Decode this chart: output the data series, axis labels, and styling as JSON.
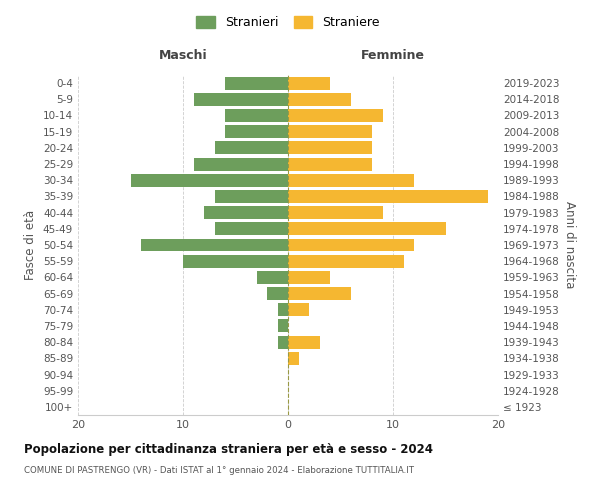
{
  "age_groups": [
    "100+",
    "95-99",
    "90-94",
    "85-89",
    "80-84",
    "75-79",
    "70-74",
    "65-69",
    "60-64",
    "55-59",
    "50-54",
    "45-49",
    "40-44",
    "35-39",
    "30-34",
    "25-29",
    "20-24",
    "15-19",
    "10-14",
    "5-9",
    "0-4"
  ],
  "birth_years": [
    "≤ 1923",
    "1924-1928",
    "1929-1933",
    "1934-1938",
    "1939-1943",
    "1944-1948",
    "1949-1953",
    "1954-1958",
    "1959-1963",
    "1964-1968",
    "1969-1973",
    "1974-1978",
    "1979-1983",
    "1984-1988",
    "1989-1993",
    "1994-1998",
    "1999-2003",
    "2004-2008",
    "2009-2013",
    "2014-2018",
    "2019-2023"
  ],
  "maschi": [
    0,
    0,
    0,
    0,
    1,
    1,
    1,
    2,
    3,
    10,
    14,
    7,
    8,
    7,
    15,
    9,
    7,
    6,
    6,
    9,
    6
  ],
  "femmine": [
    0,
    0,
    0,
    1,
    3,
    0,
    2,
    6,
    4,
    11,
    12,
    15,
    9,
    19,
    12,
    8,
    8,
    8,
    9,
    6,
    4
  ],
  "color_maschi": "#6d9e5c",
  "color_femmine": "#f5b731",
  "title": "Popolazione per cittadinanza straniera per età e sesso - 2024",
  "subtitle": "COMUNE DI PASTRENGO (VR) - Dati ISTAT al 1° gennaio 2024 - Elaborazione TUTTITALIA.IT",
  "ylabel_left": "Fasce di età",
  "ylabel_right": "Anni di nascita",
  "xlabel_maschi": "Maschi",
  "xlabel_femmine": "Femmine",
  "legend_maschi": "Stranieri",
  "legend_femmine": "Straniere",
  "xlim": 20,
  "background_color": "#ffffff",
  "grid_color": "#cccccc",
  "bar_height": 0.8
}
